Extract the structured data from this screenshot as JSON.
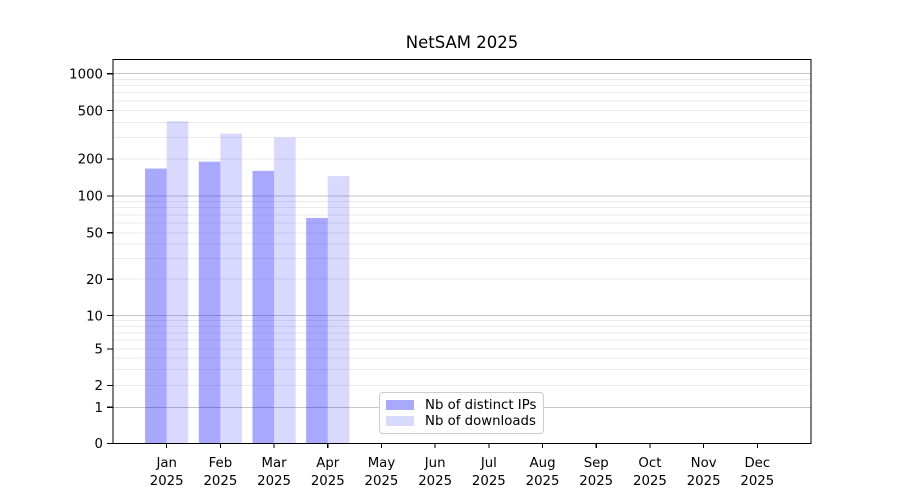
{
  "chart_data": {
    "type": "bar",
    "title": "NetSAM 2025",
    "categories": [
      "Jan",
      "Feb",
      "Mar",
      "Apr",
      "May",
      "Jun",
      "Jul",
      "Aug",
      "Sep",
      "Oct",
      "Nov",
      "Dec"
    ],
    "x_year_label": "2025",
    "series": [
      {
        "name": "Nb of distinct IPs",
        "color": "#0000ff",
        "fill_opacity": 0.34,
        "swatch_hex": "#a9a9fb",
        "values": [
          167,
          190,
          160,
          66,
          null,
          null,
          null,
          null,
          null,
          null,
          null,
          null
        ]
      },
      {
        "name": "Nb of downloads",
        "color": "#0000ff",
        "fill_opacity": 0.15,
        "swatch_hex": "#d9d9fd",
        "values": [
          408,
          323,
          300,
          145,
          null,
          null,
          null,
          null,
          null,
          null,
          null,
          null
        ]
      }
    ],
    "yaxis": {
      "scale": "symlog (log above 1, compressed linear near 0)",
      "ylim": [
        0,
        1320
      ],
      "ticks": [
        {
          "label": "0",
          "value": 0,
          "f": 0.0
        },
        {
          "label": "1",
          "value": 1,
          "f": 0.0943
        },
        {
          "label": "2",
          "value": 2,
          "f": 0.1514
        },
        {
          "label": "5",
          "value": 5,
          "f": 0.246
        },
        {
          "label": "10",
          "value": 10,
          "f": 0.3332
        },
        {
          "label": "20",
          "value": 20,
          "f": 0.4278
        },
        {
          "label": "50",
          "value": 50,
          "f": 0.5488
        },
        {
          "label": "100",
          "value": 100,
          "f": 0.6449
        },
        {
          "label": "200",
          "value": 200,
          "f": 0.741
        },
        {
          "label": "500",
          "value": 500,
          "f": 0.867
        },
        {
          "label": "1000",
          "value": 1000,
          "f": 0.9629
        }
      ],
      "major_gridlines": [
        1,
        10,
        100,
        1000
      ],
      "minor_gridlines": [
        2,
        3,
        4,
        5,
        6,
        7,
        8,
        9,
        20,
        30,
        40,
        50,
        60,
        70,
        80,
        90,
        200,
        300,
        400,
        500,
        600,
        700,
        800,
        900
      ]
    },
    "grid": {
      "on": true,
      "major_color": "#c6c6c6",
      "minor_color": "#ebebeb"
    },
    "legend": {
      "position": "inside lower-center-left",
      "border_color": "#cccccc"
    }
  }
}
